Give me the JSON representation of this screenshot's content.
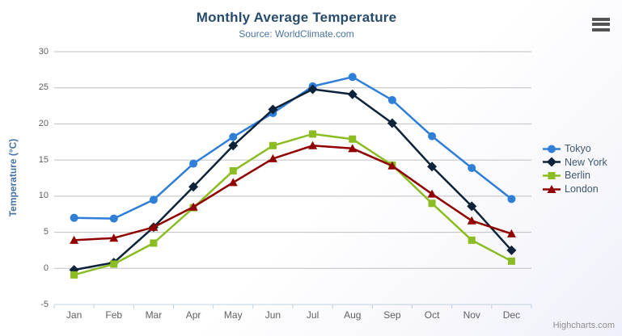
{
  "chart_data": {
    "type": "line",
    "title": "Monthly Average Temperature",
    "subtitle": "Source: WorldClimate.com",
    "xlabel": "",
    "ylabel": "Temperature (°C)",
    "ylim": [
      -5,
      30
    ],
    "y_ticks": [
      -5,
      0,
      5,
      10,
      15,
      20,
      25,
      30
    ],
    "grid": true,
    "legend_position": "right",
    "categories": [
      "Jan",
      "Feb",
      "Mar",
      "Apr",
      "May",
      "Jun",
      "Jul",
      "Aug",
      "Sep",
      "Oct",
      "Nov",
      "Dec"
    ],
    "series": [
      {
        "name": "Tokyo",
        "color": "#2f7ed8",
        "marker": "circle",
        "values": [
          7.0,
          6.9,
          9.5,
          14.5,
          18.2,
          21.5,
          25.2,
          26.5,
          23.3,
          18.3,
          13.9,
          9.6
        ]
      },
      {
        "name": "New York",
        "color": "#0d233a",
        "marker": "diamond",
        "values": [
          -0.2,
          0.8,
          5.7,
          11.3,
          17.0,
          22.0,
          24.8,
          24.1,
          20.1,
          14.1,
          8.6,
          2.5
        ]
      },
      {
        "name": "Berlin",
        "color": "#8bbc21",
        "marker": "square",
        "values": [
          -0.9,
          0.6,
          3.5,
          8.4,
          13.5,
          17.0,
          18.6,
          17.9,
          14.3,
          9.0,
          3.9,
          1.0
        ]
      },
      {
        "name": "London",
        "color": "#910000",
        "marker": "triangle",
        "values": [
          3.9,
          4.2,
          5.7,
          8.5,
          11.9,
          15.2,
          17.0,
          16.6,
          14.2,
          10.3,
          6.6,
          4.8
        ]
      }
    ]
  },
  "colors": {
    "title": "#274b6d",
    "subtitle": "#4d759e",
    "axis_title": "#4572a7",
    "tick_label": "#606060",
    "gridline": "#c0c0c0",
    "axis_line": "#c0d0e0",
    "legend_text": "#3E576F",
    "credits_text": "#909090"
  },
  "icons": {
    "menu": "hamburger-icon"
  },
  "credits": {
    "label": "Highcharts.com"
  }
}
